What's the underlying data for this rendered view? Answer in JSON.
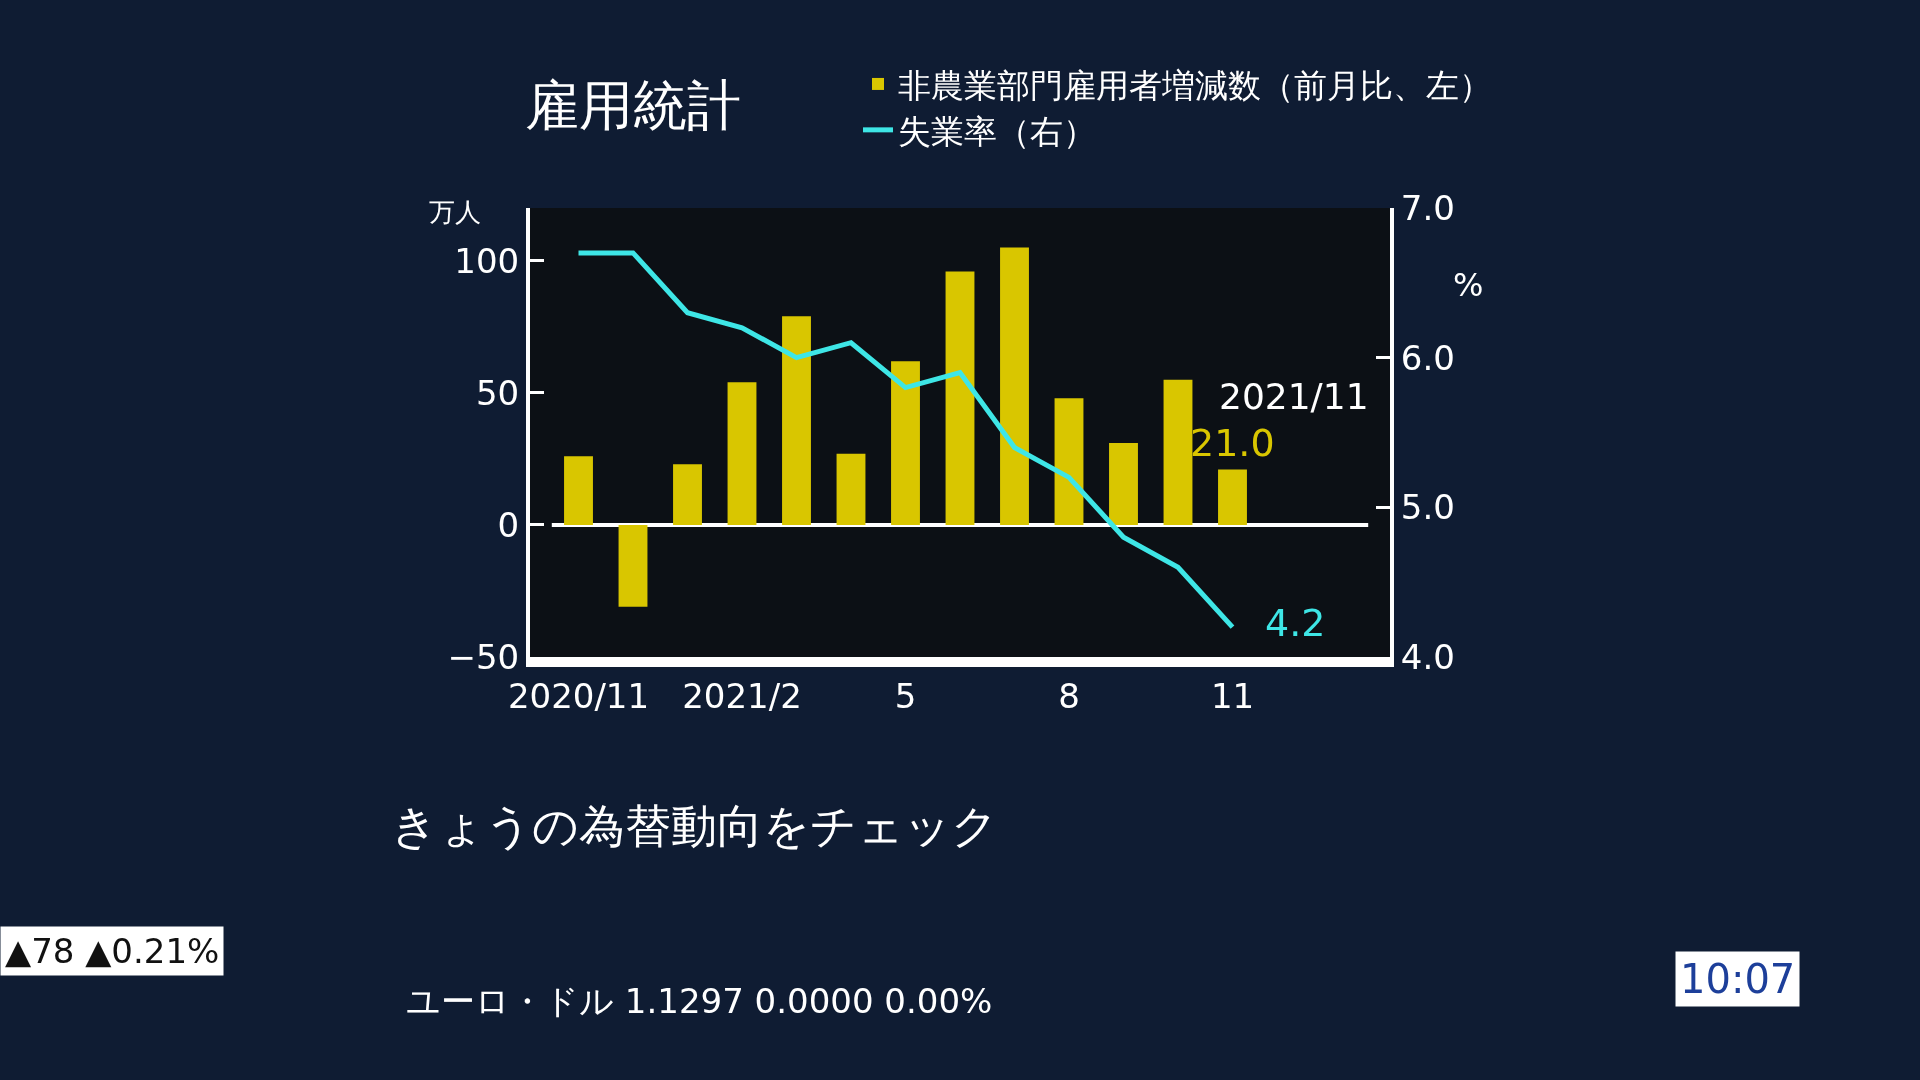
{
  "chart_data": {
    "type": "bar",
    "title": "雇用統計",
    "ylabel": "万人",
    "y2label": "%",
    "categories": [
      "2020/11",
      null,
      null,
      "2021/2",
      null,
      null,
      "5",
      null,
      null,
      "8",
      null,
      null,
      "11"
    ],
    "series": [
      {
        "name": "非農業部門雇用者増減数（前月比、左）",
        "color": "#d9c600",
        "values": [
          26,
          -31,
          23,
          54,
          79,
          27,
          62,
          96,
          105,
          48,
          31,
          55,
          21.0
        ],
        "value_labels": [
          null,
          null,
          null,
          null,
          null,
          null,
          null,
          null,
          null,
          null,
          null,
          null,
          "21.0"
        ]
      },
      {
        "name": "失業率（右）",
        "type": "line",
        "axis": "y2",
        "color": "#3ee6e6",
        "values": [
          6.7,
          6.7,
          6.3,
          6.2,
          6.0,
          6.1,
          5.8,
          5.9,
          5.4,
          5.2,
          4.8,
          4.6,
          4.2
        ],
        "value_labels": [
          null,
          null,
          null,
          null,
          null,
          null,
          null,
          null,
          null,
          null,
          null,
          null,
          "4.2"
        ]
      }
    ],
    "ylim": [
      -50,
      120
    ],
    "yticks": [
      -50,
      0,
      50,
      100
    ],
    "y2lim": [
      4.0,
      7.0
    ],
    "y2ticks": [
      {
        "value": 4,
        "label": "4.0"
      },
      {
        "value": 5,
        "label": "5.0"
      },
      {
        "value": 6,
        "label": "6.0"
      },
      {
        "value": 7,
        "label": "7.0"
      }
    ],
    "ref_lines": [
      {
        "axis": "y",
        "value": 0,
        "color": "#ffffff"
      }
    ],
    "annotations": [
      "2021/11",
      "きょうの為替動向をチェック",
      "▲78 ▲0.21%",
      "ユーロ・ドル 1.1297 0.0000 0.00%",
      "10:07"
    ],
    "grid": false,
    "legend": "top",
    "marker": "none",
    "line_style": "solid"
  }
}
